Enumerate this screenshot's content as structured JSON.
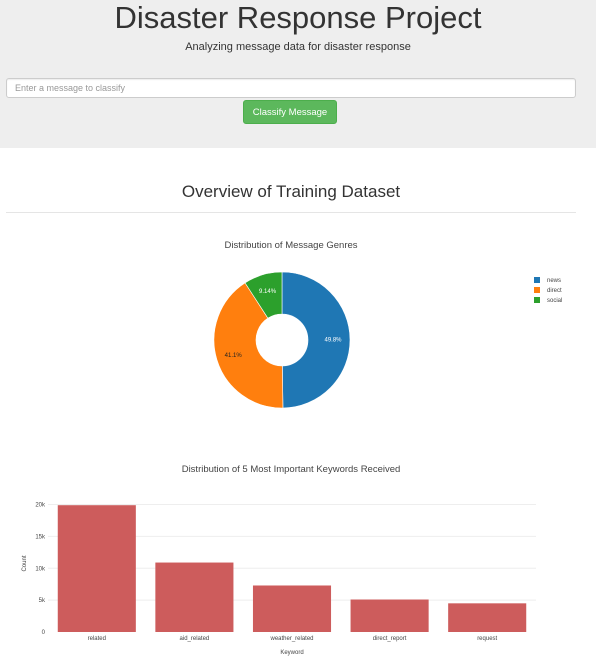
{
  "header": {
    "title": "Disaster Response Project",
    "subtitle": "Analyzing message data for disaster response"
  },
  "classify": {
    "placeholder": "Enter a message to classify",
    "button_label": "Classify Message",
    "button_color": "#5cb85c"
  },
  "overview": {
    "title": "Overview of Training Dataset"
  },
  "chart_data": [
    {
      "type": "pie",
      "title": "Distribution of Message Genres",
      "hole": true,
      "categories": [
        "news",
        "direct",
        "social"
      ],
      "values": [
        49.8,
        41.1,
        9.14
      ],
      "value_labels": [
        "49.8%",
        "41.1%",
        "9.14%"
      ],
      "colors": [
        "#1f77b4",
        "#ff7f0e",
        "#2ca02c"
      ],
      "legend": "top-right"
    },
    {
      "type": "bar",
      "title": "Distribution of 5 Most Important Keywords Received",
      "xlabel": "Keyword",
      "ylabel": "Count",
      "categories": [
        "related",
        "aid_related",
        "weather_related",
        "direct_report",
        "request"
      ],
      "values": [
        19900,
        10900,
        7300,
        5100,
        4500
      ],
      "ylim": [
        0,
        21500
      ],
      "yticks": [
        0,
        5000,
        10000,
        15000,
        20000
      ],
      "ytick_labels": [
        "0",
        "5k",
        "10k",
        "15k",
        "20k"
      ],
      "color": "#cd5c5c",
      "grid": true
    }
  ]
}
